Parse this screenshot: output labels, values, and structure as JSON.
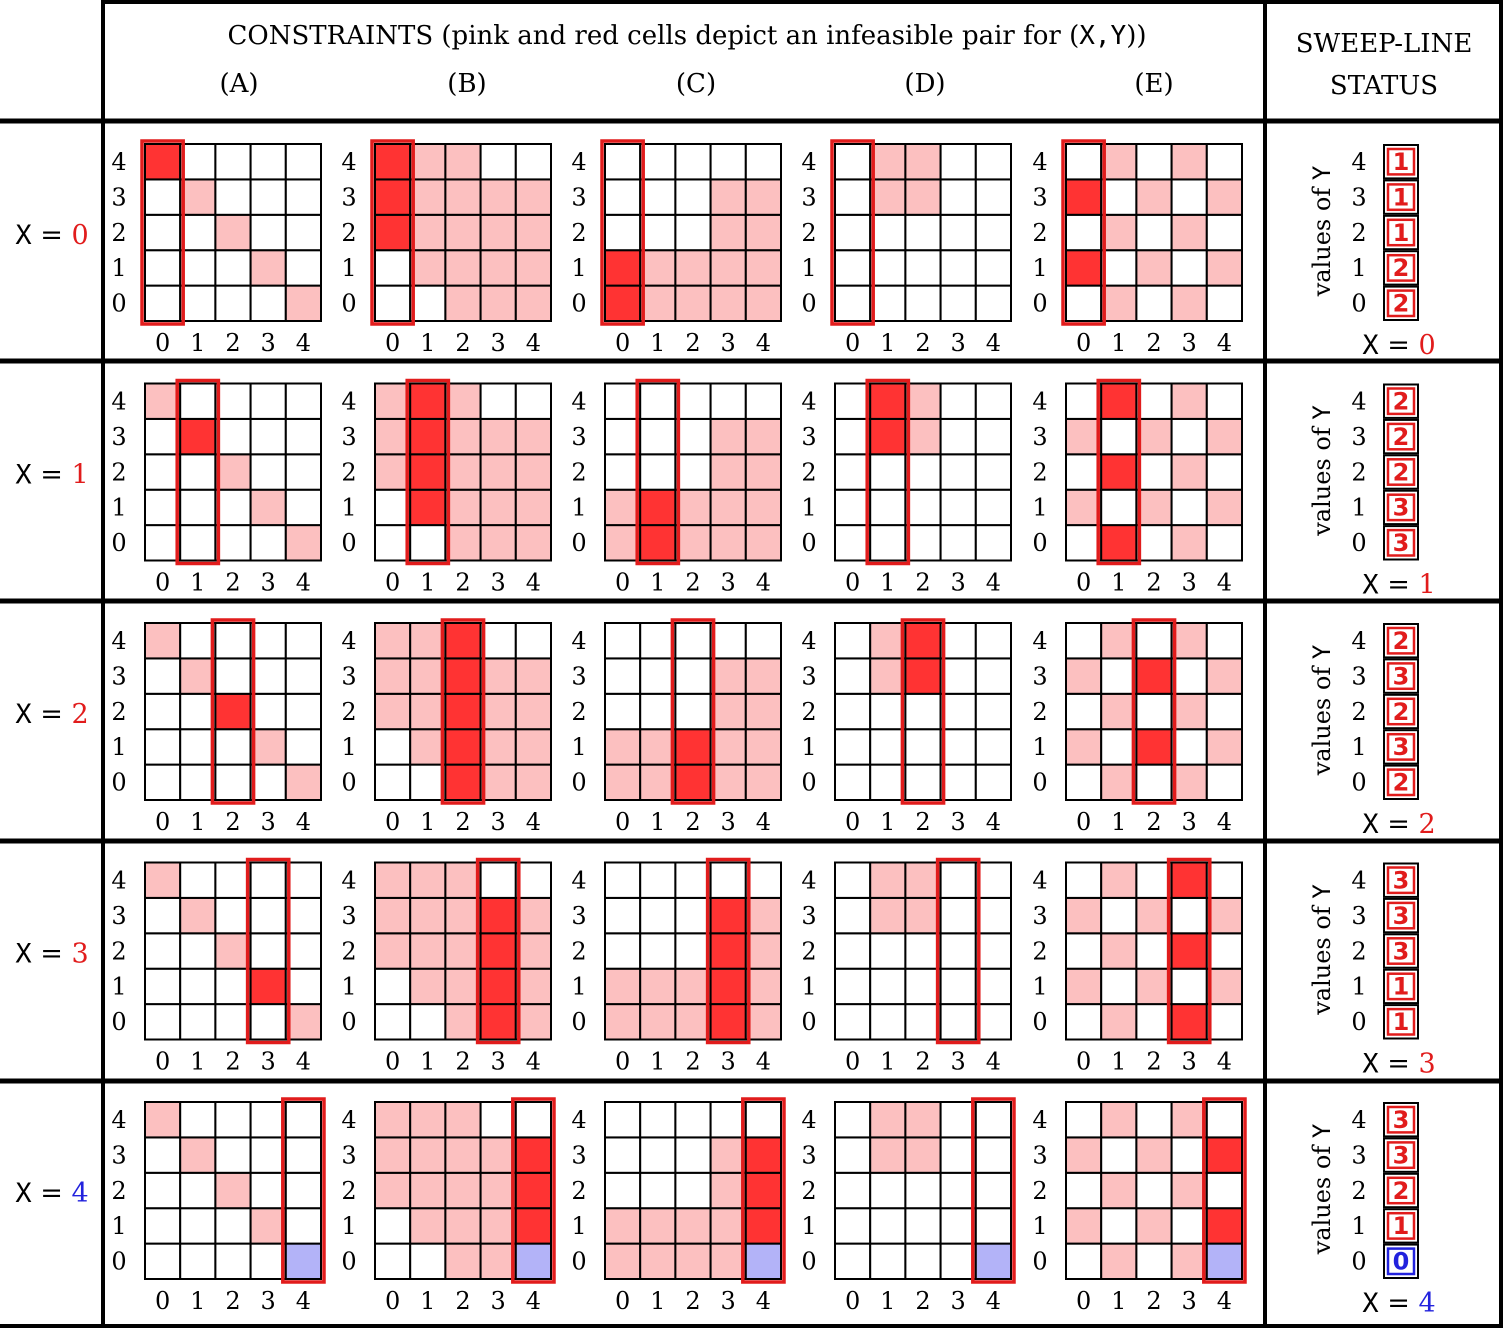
{
  "colors": {
    "pink": "#fcc0c0",
    "red": "#ff3333",
    "highlight": "#e11c1c",
    "blue": "#b3b3f8",
    "label_red": "#e11c1c",
    "label_blue": "#2222dd",
    "grid": "#000000"
  },
  "header": {
    "title_prefix": "CONSTRAINTS (pink and red cells depict an infeasible pair for (",
    "title_vars": "X,Y",
    "title_suffix": "))",
    "constraint_labels": [
      "(A)",
      "(B)",
      "(C)",
      "(D)",
      "(E)"
    ],
    "status_line1": "SWEEP-LINE",
    "status_line2": "STATUS"
  },
  "axis_ticks": [
    "0",
    "1",
    "2",
    "3",
    "4"
  ],
  "status_axis_label": "values of Y",
  "x_var_name": "X",
  "constraints_base": {
    "A": [
      "00001",
      "00010",
      "00100",
      "01000",
      "10000"
    ],
    "B": [
      "00111",
      "01111",
      "11111",
      "11111",
      "11100"
    ],
    "C": [
      "11111",
      "11111",
      "00011",
      "00011",
      "00000"
    ],
    "D": [
      "00000",
      "00000",
      "00000",
      "01100",
      "01100"
    ],
    "E": [
      "01010",
      "10101",
      "01010",
      "10101",
      "01010"
    ]
  },
  "rows": [
    {
      "x_value": "0",
      "x_color": "red",
      "status": [
        "2",
        "2",
        "1",
        "1",
        "1"
      ],
      "status_colors": [
        "red",
        "red",
        "red",
        "red",
        "red"
      ],
      "y0_blue": false
    },
    {
      "x_value": "1",
      "x_color": "red",
      "status": [
        "3",
        "3",
        "2",
        "2",
        "2"
      ],
      "status_colors": [
        "red",
        "red",
        "red",
        "red",
        "red"
      ],
      "y0_blue": false
    },
    {
      "x_value": "2",
      "x_color": "red",
      "status": [
        "2",
        "3",
        "2",
        "3",
        "2"
      ],
      "status_colors": [
        "red",
        "red",
        "red",
        "red",
        "red"
      ],
      "y0_blue": false
    },
    {
      "x_value": "3",
      "x_color": "red",
      "status": [
        "1",
        "1",
        "3",
        "3",
        "3"
      ],
      "status_colors": [
        "red",
        "red",
        "red",
        "red",
        "red"
      ],
      "y0_blue": false
    },
    {
      "x_value": "4",
      "x_color": "blue",
      "status": [
        "0",
        "1",
        "2",
        "3",
        "3"
      ],
      "status_colors": [
        "blue",
        "red",
        "red",
        "red",
        "red"
      ],
      "y0_blue": true
    }
  ]
}
